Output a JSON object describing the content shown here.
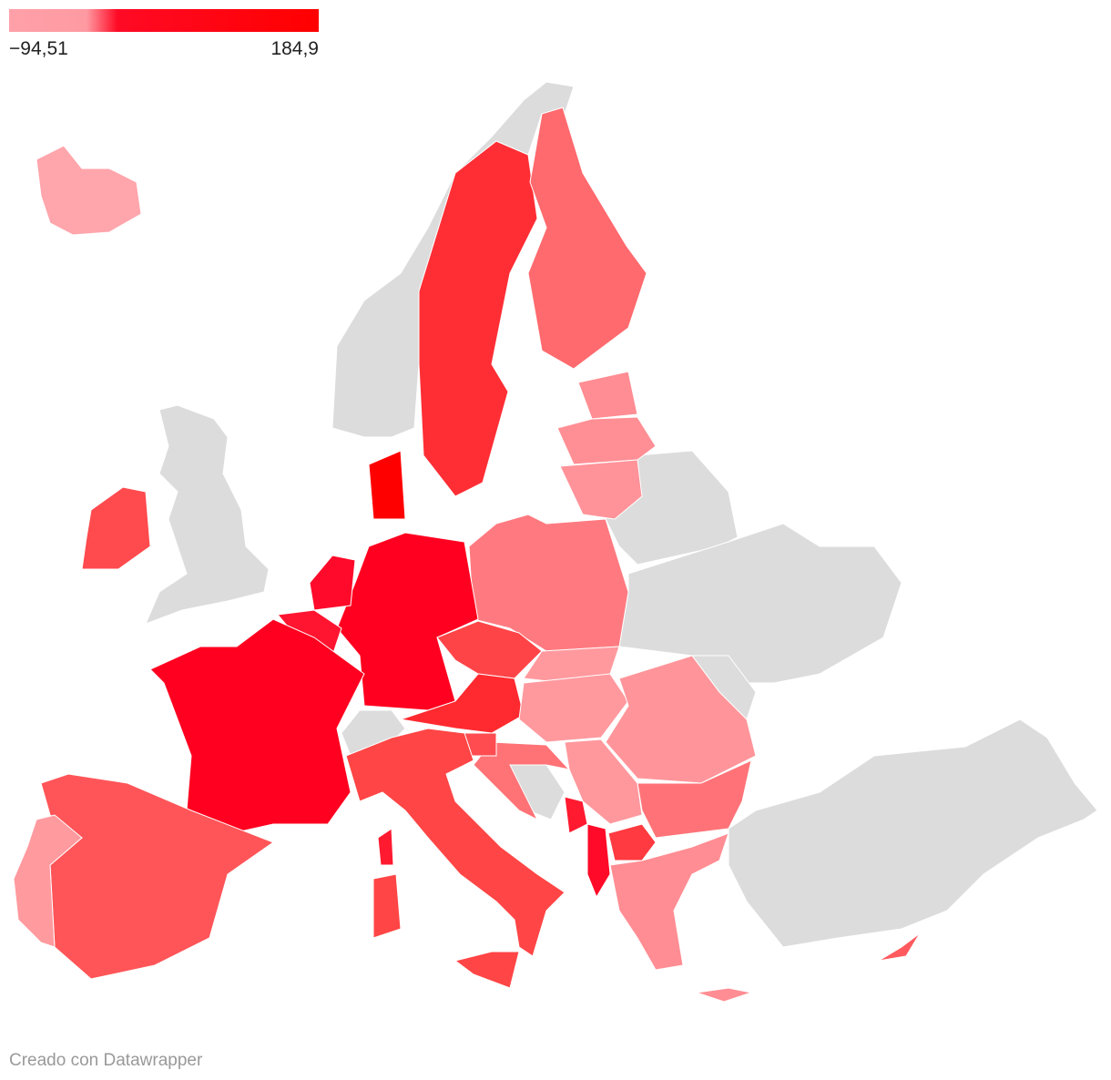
{
  "legend": {
    "min": {
      "value": -94.51,
      "label": "−94,51"
    },
    "max": {
      "value": 184.9,
      "label": "184,9"
    }
  },
  "footer": "Creado con Datawrapper"
}
